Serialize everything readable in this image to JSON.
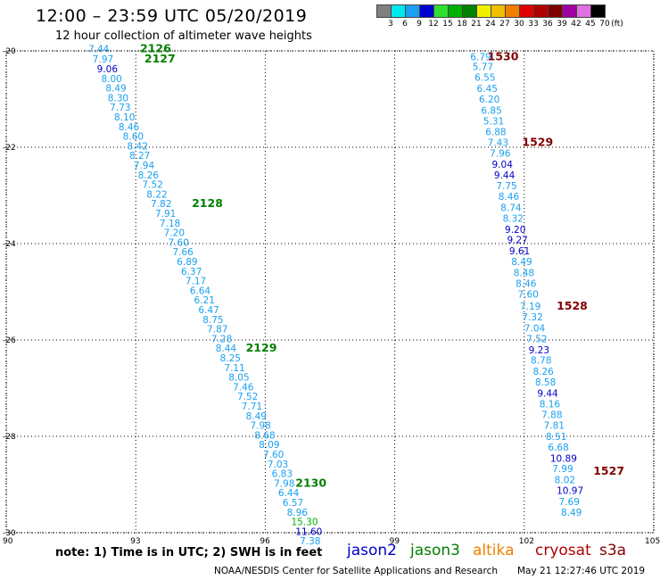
{
  "header": {
    "title": "12:00 – 23:59 UTC 05/20/2019",
    "subtitle": "12 hour collection of altimeter wave heights"
  },
  "legend": {
    "unit": "(ft)",
    "bins": [
      {
        "label": "3",
        "color": "#808080"
      },
      {
        "label": "6",
        "color": "#00e8f0"
      },
      {
        "label": "9",
        "color": "#1aa0f0"
      },
      {
        "label": "12",
        "color": "#0000d0"
      },
      {
        "label": "15",
        "color": "#30e030"
      },
      {
        "label": "18",
        "color": "#00b000"
      },
      {
        "label": "21",
        "color": "#008000"
      },
      {
        "label": "24",
        "color": "#f0f000"
      },
      {
        "label": "27",
        "color": "#f0c000"
      },
      {
        "label": "30",
        "color": "#f08000"
      },
      {
        "label": "33",
        "color": "#e00000"
      },
      {
        "label": "36",
        "color": "#b00000"
      },
      {
        "label": "39",
        "color": "#800000"
      },
      {
        "label": "42",
        "color": "#a000a0"
      },
      {
        "label": "45",
        "color": "#e070e0"
      },
      {
        "label": "70",
        "color": "#000000"
      }
    ]
  },
  "axes": {
    "lat_labels": [
      "-20",
      "-22",
      "-24",
      "-26",
      "-28",
      "-30"
    ],
    "lon_labels": [
      "90",
      "93",
      "96",
      "99",
      "102",
      "105"
    ]
  },
  "satellite_colors": {
    "jason2": "#0000c8",
    "jason3": "#008000",
    "altika": "#f08000",
    "cryosat": "#b00000",
    "s3a": "#800000",
    "light": "#1aa0f0",
    "bright_green": "#00b000"
  },
  "tracks": [
    {
      "label": "2126",
      "label_lon": 93.1,
      "label_lat": -19.95,
      "sat": "jason3",
      "points": [
        {
          "lon": 91.9,
          "lat": -19.95,
          "v": "7.44",
          "c": "light"
        }
      ]
    },
    {
      "label": "2127",
      "label_lon": 93.2,
      "label_lat": -20.17,
      "sat": "jason3",
      "points": [
        {
          "lon": 92.0,
          "lat": -20.17,
          "v": "7.97",
          "c": "light"
        },
        {
          "lon": 92.1,
          "lat": -20.37,
          "v": "9.06",
          "c": "jason2"
        },
        {
          "lon": 92.2,
          "lat": -20.57,
          "v": "8.00",
          "c": "light"
        },
        {
          "lon": 92.3,
          "lat": -20.77,
          "v": "8.49",
          "c": "light"
        },
        {
          "lon": 92.35,
          "lat": -20.97,
          "v": "8.30",
          "c": "light"
        },
        {
          "lon": 92.4,
          "lat": -21.17,
          "v": "7.73",
          "c": "light"
        },
        {
          "lon": 92.5,
          "lat": -21.37,
          "v": "8.10",
          "c": "light"
        },
        {
          "lon": 92.6,
          "lat": -21.57,
          "v": "8.46",
          "c": "light"
        },
        {
          "lon": 92.7,
          "lat": -21.77,
          "v": "8.60",
          "c": "light"
        },
        {
          "lon": 92.8,
          "lat": -21.97,
          "v": "8.42",
          "c": "light"
        },
        {
          "lon": 92.85,
          "lat": -22.17,
          "v": "8.27",
          "c": "light"
        },
        {
          "lon": 92.95,
          "lat": -22.37,
          "v": "7.94",
          "c": "light"
        },
        {
          "lon": 93.05,
          "lat": -22.57,
          "v": "8.26",
          "c": "light"
        },
        {
          "lon": 93.15,
          "lat": -22.77,
          "v": "7.52",
          "c": "light"
        },
        {
          "lon": 93.25,
          "lat": -22.97,
          "v": "8.22",
          "c": "light"
        }
      ]
    },
    {
      "label": "2128",
      "label_lon": 94.3,
      "label_lat": -23.17,
      "sat": "jason3",
      "points": [
        {
          "lon": 93.35,
          "lat": -23.17,
          "v": "7.82",
          "c": "light"
        },
        {
          "lon": 93.45,
          "lat": -23.37,
          "v": "7.91",
          "c": "light"
        },
        {
          "lon": 93.55,
          "lat": -23.57,
          "v": "7.18",
          "c": "light"
        },
        {
          "lon": 93.65,
          "lat": -23.77,
          "v": "7.20",
          "c": "light"
        },
        {
          "lon": 93.75,
          "lat": -23.97,
          "v": "7.60",
          "c": "light"
        },
        {
          "lon": 93.85,
          "lat": -24.17,
          "v": "7.66",
          "c": "light"
        },
        {
          "lon": 93.95,
          "lat": -24.37,
          "v": "6.89",
          "c": "light"
        },
        {
          "lon": 94.05,
          "lat": -24.57,
          "v": "6.37",
          "c": "light"
        },
        {
          "lon": 94.15,
          "lat": -24.77,
          "v": "7.17",
          "c": "light"
        },
        {
          "lon": 94.25,
          "lat": -24.97,
          "v": "6.64",
          "c": "light"
        },
        {
          "lon": 94.35,
          "lat": -25.17,
          "v": "6.21",
          "c": "light"
        },
        {
          "lon": 94.45,
          "lat": -25.37,
          "v": "6.47",
          "c": "light"
        },
        {
          "lon": 94.55,
          "lat": -25.57,
          "v": "8.75",
          "c": "light"
        },
        {
          "lon": 94.65,
          "lat": -25.77,
          "v": "7.87",
          "c": "light"
        },
        {
          "lon": 94.75,
          "lat": -25.97,
          "v": "7.28",
          "c": "light"
        }
      ]
    },
    {
      "label": "2129",
      "label_lon": 95.55,
      "label_lat": -26.17,
      "sat": "jason3",
      "points": [
        {
          "lon": 94.85,
          "lat": -26.17,
          "v": "8.44",
          "c": "light"
        },
        {
          "lon": 94.95,
          "lat": -26.37,
          "v": "8.25",
          "c": "light"
        },
        {
          "lon": 95.05,
          "lat": -26.57,
          "v": "7.11",
          "c": "light"
        },
        {
          "lon": 95.15,
          "lat": -26.77,
          "v": "8.05",
          "c": "light"
        },
        {
          "lon": 95.25,
          "lat": -26.97,
          "v": "7.46",
          "c": "light"
        },
        {
          "lon": 95.35,
          "lat": -27.17,
          "v": "7.52",
          "c": "light"
        },
        {
          "lon": 95.45,
          "lat": -27.37,
          "v": "7.71",
          "c": "light"
        },
        {
          "lon": 95.55,
          "lat": -27.57,
          "v": "8.49",
          "c": "light"
        },
        {
          "lon": 95.65,
          "lat": -27.77,
          "v": "7.98",
          "c": "light"
        },
        {
          "lon": 95.75,
          "lat": -27.97,
          "v": "8.68",
          "c": "light"
        },
        {
          "lon": 95.85,
          "lat": -28.17,
          "v": "8.09",
          "c": "light"
        },
        {
          "lon": 95.95,
          "lat": -28.37,
          "v": "7.60",
          "c": "light"
        },
        {
          "lon": 96.05,
          "lat": -28.57,
          "v": "7.03",
          "c": "light"
        },
        {
          "lon": 96.15,
          "lat": -28.77,
          "v": "6.83",
          "c": "light"
        }
      ]
    },
    {
      "label": "2130",
      "label_lon": 96.7,
      "label_lat": -28.97,
      "sat": "jason3",
      "points": [
        {
          "lon": 96.2,
          "lat": -28.97,
          "v": "7.98",
          "c": "light"
        },
        {
          "lon": 96.3,
          "lat": -29.17,
          "v": "6.44",
          "c": "light"
        },
        {
          "lon": 96.4,
          "lat": -29.37,
          "v": "6.57",
          "c": "light"
        },
        {
          "lon": 96.5,
          "lat": -29.57,
          "v": "8.96",
          "c": "light"
        },
        {
          "lon": 96.6,
          "lat": -29.77,
          "v": "15.30",
          "c": "bright_green"
        },
        {
          "lon": 96.7,
          "lat": -29.97,
          "v": "11.60",
          "c": "jason2"
        },
        {
          "lon": 96.8,
          "lat": -30.17,
          "v": "7.38",
          "c": "light"
        }
      ]
    },
    {
      "label": "1530",
      "label_lon": 101.15,
      "label_lat": -20.12,
      "sat": "s3a",
      "points": [
        {
          "lon": 100.75,
          "lat": -20.12,
          "v": "6.79",
          "c": "light"
        },
        {
          "lon": 100.8,
          "lat": -20.32,
          "v": "5.77",
          "c": "light"
        },
        {
          "lon": 100.85,
          "lat": -20.55,
          "v": "6.55",
          "c": "light"
        },
        {
          "lon": 100.9,
          "lat": -20.78,
          "v": "6.45",
          "c": "light"
        },
        {
          "lon": 100.95,
          "lat": -21.0,
          "v": "6.20",
          "c": "light"
        },
        {
          "lon": 101.0,
          "lat": -21.23,
          "v": "6.85",
          "c": "light"
        },
        {
          "lon": 101.05,
          "lat": -21.45,
          "v": "5.31",
          "c": "light"
        },
        {
          "lon": 101.1,
          "lat": -21.68,
          "v": "6.88",
          "c": "light"
        }
      ]
    },
    {
      "label": "1529",
      "label_lon": 101.95,
      "label_lat": -21.9,
      "sat": "s3a",
      "points": [
        {
          "lon": 101.15,
          "lat": -21.9,
          "v": "7.43",
          "c": "light"
        },
        {
          "lon": 101.2,
          "lat": -22.12,
          "v": "7.96",
          "c": "light"
        },
        {
          "lon": 101.25,
          "lat": -22.35,
          "v": "9.04",
          "c": "jason2"
        },
        {
          "lon": 101.3,
          "lat": -22.57,
          "v": "9.44",
          "c": "jason2"
        },
        {
          "lon": 101.35,
          "lat": -22.8,
          "v": "7.75",
          "c": "light"
        },
        {
          "lon": 101.4,
          "lat": -23.02,
          "v": "8.46",
          "c": "light"
        },
        {
          "lon": 101.45,
          "lat": -23.25,
          "v": "8.74",
          "c": "light"
        },
        {
          "lon": 101.5,
          "lat": -23.47,
          "v": "8.32",
          "c": "light"
        },
        {
          "lon": 101.55,
          "lat": -23.7,
          "v": "9.20",
          "c": "jason2"
        },
        {
          "lon": 101.6,
          "lat": -23.92,
          "v": "9.27",
          "c": "jason2"
        },
        {
          "lon": 101.65,
          "lat": -24.15,
          "v": "9.61",
          "c": "jason2"
        },
        {
          "lon": 101.7,
          "lat": -24.37,
          "v": "8.49",
          "c": "light"
        },
        {
          "lon": 101.75,
          "lat": -24.6,
          "v": "8.48",
          "c": "light"
        },
        {
          "lon": 101.8,
          "lat": -24.82,
          "v": "8.46",
          "c": "light"
        },
        {
          "lon": 101.85,
          "lat": -25.05,
          "v": "7.60",
          "c": "light"
        }
      ]
    },
    {
      "label": "1528",
      "label_lon": 102.75,
      "label_lat": -25.3,
      "sat": "s3a",
      "points": [
        {
          "lon": 101.9,
          "lat": -25.3,
          "v": "7.19",
          "c": "light"
        },
        {
          "lon": 101.95,
          "lat": -25.52,
          "v": "7.32",
          "c": "light"
        },
        {
          "lon": 102.0,
          "lat": -25.75,
          "v": "7.04",
          "c": "light"
        },
        {
          "lon": 102.05,
          "lat": -25.97,
          "v": "7.52",
          "c": "light"
        },
        {
          "lon": 102.1,
          "lat": -26.2,
          "v": "9.23",
          "c": "jason2"
        },
        {
          "lon": 102.15,
          "lat": -26.42,
          "v": "8.78",
          "c": "light"
        },
        {
          "lon": 102.2,
          "lat": -26.65,
          "v": "8.26",
          "c": "light"
        },
        {
          "lon": 102.25,
          "lat": -26.87,
          "v": "8.58",
          "c": "light"
        },
        {
          "lon": 102.3,
          "lat": -27.1,
          "v": "9.44",
          "c": "jason2"
        },
        {
          "lon": 102.35,
          "lat": -27.32,
          "v": "8.16",
          "c": "light"
        },
        {
          "lon": 102.4,
          "lat": -27.55,
          "v": "7.88",
          "c": "light"
        },
        {
          "lon": 102.45,
          "lat": -27.77,
          "v": "7.81",
          "c": "light"
        },
        {
          "lon": 102.5,
          "lat": -28.0,
          "v": "8.51",
          "c": "light"
        },
        {
          "lon": 102.55,
          "lat": -28.22,
          "v": "6.68",
          "c": "light"
        },
        {
          "lon": 102.6,
          "lat": -28.45,
          "v": "10.89",
          "c": "jason2"
        },
        {
          "lon": 102.65,
          "lat": -28.67,
          "v": "7.99",
          "c": "light"
        }
      ]
    },
    {
      "label": "1527",
      "label_lon": 103.6,
      "label_lat": -28.72,
      "sat": "s3a",
      "points": [
        {
          "lon": 102.7,
          "lat": -28.9,
          "v": "8.02",
          "c": "light"
        },
        {
          "lon": 102.75,
          "lat": -29.12,
          "v": "10.97",
          "c": "jason2"
        },
        {
          "lon": 102.8,
          "lat": -29.35,
          "v": "7.69",
          "c": "light"
        },
        {
          "lon": 102.85,
          "lat": -29.57,
          "v": "8.49",
          "c": "light"
        }
      ]
    }
  ],
  "footer": {
    "note": "note: 1) Time is in UTC; 2) SWH is in feet",
    "satellites": [
      {
        "name": "jason2",
        "color": "#0000c8"
      },
      {
        "name": "jason3",
        "color": "#008000"
      },
      {
        "name": "altika",
        "color": "#f08000"
      },
      {
        "name": "cryosat",
        "color": "#b00000"
      },
      {
        "name": "s3a",
        "color": "#800000"
      }
    ],
    "credit": "NOAA/NESDIS Center for Satellite Applications and Research",
    "timestamp": "May 21 12:27:46 UTC 2019"
  }
}
